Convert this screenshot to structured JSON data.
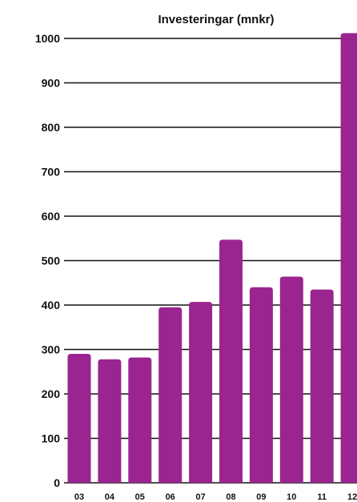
{
  "chart_data": {
    "type": "bar",
    "title": "Investeringar (mnkr)",
    "categories": [
      "03",
      "04",
      "05",
      "06",
      "07",
      "08",
      "09",
      "10",
      "11",
      "12"
    ],
    "values": [
      290,
      278,
      282,
      395,
      407,
      547,
      440,
      464,
      435,
      1012
    ],
    "ylim": [
      0,
      1000
    ],
    "yticks": [
      0,
      100,
      200,
      300,
      400,
      500,
      600,
      700,
      800,
      900,
      1000
    ],
    "grid": true,
    "bar_color": "#9b2590"
  }
}
